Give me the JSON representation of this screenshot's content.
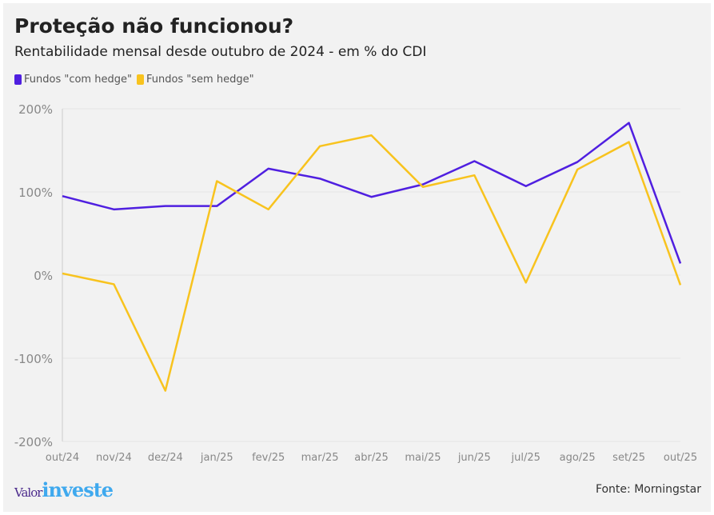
{
  "chart_data": {
    "type": "line",
    "title": "Proteção não funcionou?",
    "subtitle": "Rentabilidade mensal desde outubro de 2024 - em % do CDI",
    "x": [
      "out/24",
      "nov/24",
      "dez/24",
      "jan/25",
      "fev/25",
      "mar/25",
      "abr/25",
      "mai/25",
      "jun/25",
      "jul/25",
      "ago/25",
      "set/25",
      "out/25"
    ],
    "yticks": [
      200,
      100,
      0,
      -100,
      -200
    ],
    "ytick_labels": [
      "200%",
      "100%",
      "0%",
      "-100%",
      "-200%"
    ],
    "ylim": [
      -200,
      200
    ],
    "grid": true,
    "legend_position": "top-left",
    "series": [
      {
        "name": "Fundos \"com hedge\"",
        "color": "#4f1fe0",
        "values": [
          95,
          79,
          83,
          83,
          128,
          116,
          94,
          109,
          137,
          107,
          136,
          183,
          14
        ]
      },
      {
        "name": "Fundos \"sem hedge\"",
        "color": "#f8c31e",
        "values": [
          2,
          -11,
          -139,
          113,
          79,
          155,
          168,
          106,
          120,
          -9,
          127,
          160,
          -12
        ]
      }
    ]
  },
  "footer": {
    "logo_a": "Valor",
    "logo_b": "investe",
    "source": "Fonte: Morningstar"
  }
}
